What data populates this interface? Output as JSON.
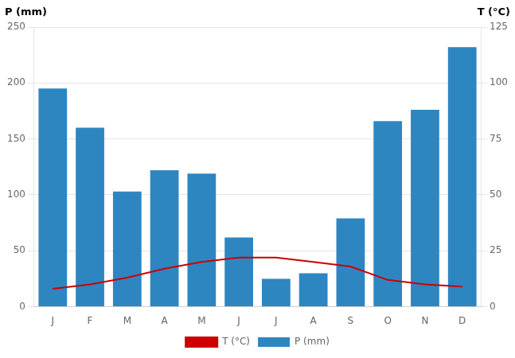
{
  "chart_data": {
    "type": "bar",
    "categories": [
      "J",
      "F",
      "M",
      "A",
      "M",
      "J",
      "J",
      "A",
      "S",
      "O",
      "N",
      "D"
    ],
    "series": [
      {
        "name": "P (mm)",
        "type": "bar",
        "color": "#2E86C1",
        "values": [
          195,
          160,
          103,
          122,
          119,
          62,
          25,
          30,
          79,
          166,
          176,
          232
        ]
      },
      {
        "name": "T (°C)",
        "type": "line",
        "axis": "y2",
        "color": "#CC0000",
        "values": [
          8,
          10,
          13,
          17,
          20,
          22,
          22,
          20,
          18,
          12,
          10,
          9
        ]
      }
    ],
    "ylabel": "P (mm)",
    "y2label": "T (°C)",
    "ylim": [
      0,
      250
    ],
    "yticks": [
      0,
      50,
      100,
      150,
      200,
      250
    ],
    "y2lim": [
      0,
      125
    ],
    "y2ticks": [
      0,
      25,
      50,
      75,
      100,
      125
    ],
    "grid": true,
    "legend": "bottom"
  }
}
